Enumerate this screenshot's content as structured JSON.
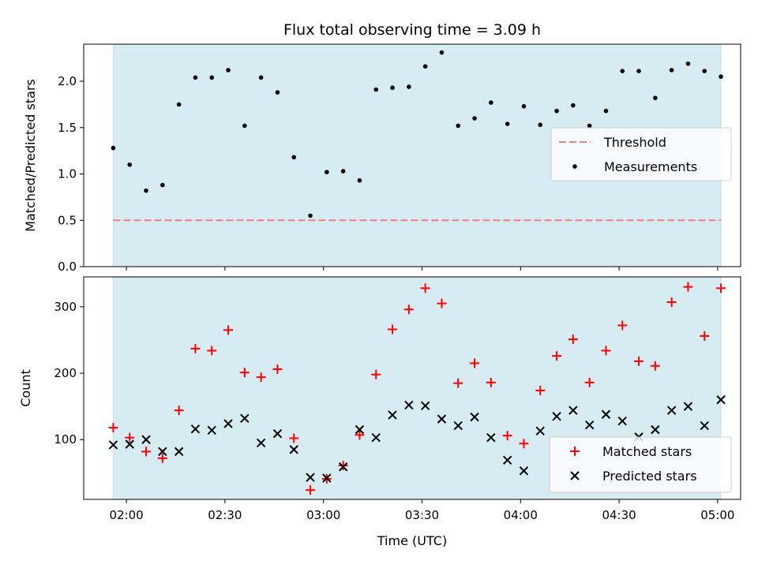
{
  "chart_data": [
    {
      "type": "scatter",
      "title": "Flux total observing time = 3.09 h",
      "xlabel": "",
      "ylabel": "Matched/Predicted stars",
      "ylim": [
        0,
        2.4
      ],
      "yticks": [
        "0.0",
        "0.5",
        "1.0",
        "1.5",
        "2.0"
      ],
      "shaded_region_color": "#add8e6",
      "legend_position": "center-right",
      "threshold": {
        "name": "Threshold",
        "value": 0.5,
        "color": "#f08080",
        "style": "dashed"
      },
      "series": [
        {
          "name": "Measurements",
          "color": "#000000",
          "x": [
            "01:56",
            "02:01",
            "02:06",
            "02:11",
            "02:16",
            "02:21",
            "02:26",
            "02:31",
            "02:36",
            "02:41",
            "02:46",
            "02:51",
            "02:56",
            "03:01",
            "03:06",
            "03:11",
            "03:16",
            "03:21",
            "03:26",
            "03:31",
            "03:36",
            "03:41",
            "03:46",
            "03:51",
            "03:56",
            "04:01",
            "04:06",
            "04:11",
            "04:16",
            "04:21",
            "04:26",
            "04:31",
            "04:36",
            "04:41",
            "04:46",
            "04:51",
            "04:56",
            "05:01"
          ],
          "y": [
            1.28,
            1.1,
            0.82,
            0.88,
            1.75,
            2.04,
            2.04,
            2.12,
            1.52,
            2.04,
            1.88,
            1.18,
            0.55,
            1.02,
            1.03,
            0.93,
            1.91,
            1.93,
            1.94,
            2.16,
            2.31,
            1.52,
            1.6,
            1.77,
            1.54,
            1.73,
            1.53,
            1.68,
            1.74,
            1.52,
            1.68,
            2.11,
            2.11,
            1.82,
            2.12,
            2.19,
            2.11,
            2.05
          ]
        }
      ]
    },
    {
      "type": "scatter",
      "title": "",
      "xlabel": "Time (UTC)",
      "ylabel": "Count",
      "xlim": [
        "01:47",
        "05:07"
      ],
      "xticks": [
        "02:00",
        "02:30",
        "03:00",
        "03:30",
        "04:00",
        "04:30",
        "05:00"
      ],
      "ylim": [
        10,
        345
      ],
      "yticks": [
        "100",
        "200",
        "300"
      ],
      "shaded_region_color": "#add8e6",
      "legend_position": "bottom-right",
      "series": [
        {
          "name": "Matched stars",
          "marker": "plus",
          "color": "#ff0000",
          "x": [
            "01:56",
            "02:01",
            "02:06",
            "02:11",
            "02:16",
            "02:21",
            "02:26",
            "02:31",
            "02:36",
            "02:41",
            "02:46",
            "02:51",
            "02:56",
            "03:01",
            "03:06",
            "03:11",
            "03:16",
            "03:21",
            "03:26",
            "03:31",
            "03:36",
            "03:41",
            "03:46",
            "03:51",
            "03:56",
            "04:01",
            "04:06",
            "04:11",
            "04:16",
            "04:21",
            "04:26",
            "04:31",
            "04:36",
            "04:41",
            "04:46",
            "04:51",
            "04:56",
            "05:01"
          ],
          "y": [
            118,
            103,
            82,
            72,
            144,
            237,
            234,
            265,
            201,
            194,
            206,
            102,
            24,
            41,
            61,
            107,
            198,
            266,
            296,
            328,
            305,
            185,
            215,
            186,
            106,
            94,
            174,
            226,
            251,
            186,
            234,
            272,
            218,
            211,
            307,
            330,
            256,
            328
          ]
        },
        {
          "name": "Predicted stars",
          "marker": "x",
          "color": "#000000",
          "x": [
            "01:56",
            "02:01",
            "02:06",
            "02:11",
            "02:16",
            "02:21",
            "02:26",
            "02:31",
            "02:36",
            "02:41",
            "02:46",
            "02:51",
            "02:56",
            "03:01",
            "03:06",
            "03:11",
            "03:16",
            "03:21",
            "03:26",
            "03:31",
            "03:36",
            "03:41",
            "03:46",
            "03:51",
            "03:56",
            "04:01",
            "04:06",
            "04:11",
            "04:16",
            "04:21",
            "04:26",
            "04:31",
            "04:36",
            "04:41",
            "04:46",
            "04:51",
            "04:56",
            "05:01"
          ],
          "y": [
            92,
            93,
            100,
            82,
            82,
            116,
            114,
            124,
            132,
            95,
            109,
            85,
            43,
            42,
            59,
            115,
            103,
            137,
            152,
            151,
            131,
            121,
            134,
            103,
            69,
            53,
            113,
            135,
            144,
            122,
            138,
            128,
            104,
            115,
            144,
            150,
            121,
            160
          ]
        }
      ]
    }
  ]
}
